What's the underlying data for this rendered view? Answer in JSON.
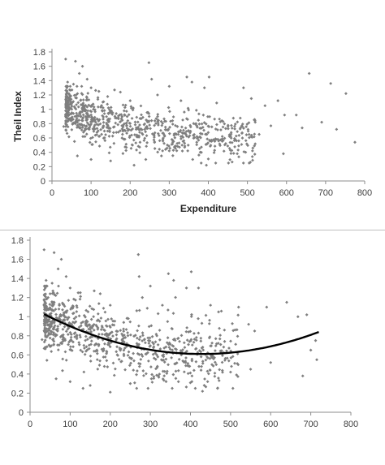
{
  "chart_data": [
    {
      "type": "scatter",
      "title": "",
      "xlabel": "Expenditure",
      "ylabel": "Theil Index",
      "xlim": [
        0,
        800
      ],
      "ylim": [
        0,
        1.8
      ],
      "x_ticks": [
        "0",
        "100",
        "200",
        "300",
        "400",
        "500",
        "600",
        "700",
        "800"
      ],
      "y_ticks": [
        "0",
        "0.2",
        "0.4",
        "0.6",
        "0.8",
        "1",
        "1.2",
        "1.4",
        "1.6",
        "1.8"
      ],
      "grid": false,
      "series": [
        {
          "color": "#7f7f7f",
          "points": [
            [
              35,
              1.7
            ],
            [
              40,
              1.38
            ],
            [
              38,
              1.3
            ],
            [
              60,
              1.67
            ],
            [
              78,
              1.6
            ],
            [
              70,
              1.5
            ],
            [
              55,
              1.35
            ],
            [
              45,
              1.2
            ],
            [
              90,
              1.42
            ],
            [
              100,
              1.3
            ],
            [
              120,
              1.25
            ],
            [
              160,
              1.27
            ],
            [
              175,
              1.24
            ],
            [
              200,
              1.12
            ],
            [
              248,
              1.65
            ],
            [
              255,
              1.42
            ],
            [
              270,
              1.2
            ],
            [
              300,
              1.32
            ],
            [
              330,
              1.12
            ],
            [
              345,
              1.45
            ],
            [
              358,
              1.38
            ],
            [
              390,
              1.3
            ],
            [
              402,
              1.45
            ],
            [
              490,
              1.3
            ],
            [
              510,
              1.15
            ],
            [
              545,
              1.05
            ],
            [
              578,
              1.12
            ],
            [
              625,
              0.92
            ],
            [
              658,
              1.5
            ],
            [
              713,
              1.36
            ],
            [
              752,
              1.22
            ],
            [
              560,
              0.77
            ],
            [
              595,
              0.92
            ],
            [
              592,
              0.38
            ],
            [
              640,
              0.74
            ],
            [
              690,
              0.82
            ],
            [
              728,
              0.72
            ],
            [
              775,
              0.54
            ],
            [
              530,
              0.65
            ],
            [
              470,
              0.57
            ],
            [
              420,
              0.58
            ],
            [
              395,
              0.22
            ],
            [
              360,
              0.3
            ],
            [
              350,
              0.7
            ],
            [
              300,
              0.42
            ],
            [
              280,
              0.35
            ],
            [
              240,
              0.3
            ],
            [
              210,
              0.22
            ],
            [
              150,
              0.28
            ],
            [
              100,
              0.3
            ],
            [
              65,
              0.35
            ],
            [
              30,
              0.76
            ]
          ]
        },
        {
          "color": "#7f7f7f",
          "generated": {
            "count": 800,
            "seed": 11,
            "x_range": [
              35,
              520
            ],
            "fit": [
              1.104,
              -0.002311,
              2.7e-06
            ],
            "noise": 0.17,
            "y_range": [
              0.25,
              1.32
            ]
          }
        }
      ]
    },
    {
      "type": "scatter",
      "title": "",
      "xlabel": "",
      "ylabel": "",
      "xlim": [
        0,
        800
      ],
      "ylim": [
        0,
        1.8
      ],
      "x_ticks": [
        "0",
        "100",
        "200",
        "300",
        "400",
        "500",
        "600",
        "700",
        "800"
      ],
      "y_ticks": [
        "0",
        "0.2",
        "0.4",
        "0.6",
        "0.8",
        "1",
        "1.2",
        "1.4",
        "1.6",
        "1.8"
      ],
      "grid": false,
      "series": [
        {
          "color": "#7f7f7f",
          "points": [
            [
              35,
              1.7
            ],
            [
              40,
              1.38
            ],
            [
              38,
              1.3
            ],
            [
              60,
              1.67
            ],
            [
              78,
              1.6
            ],
            [
              70,
              1.5
            ],
            [
              55,
              1.35
            ],
            [
              45,
              1.2
            ],
            [
              90,
              1.42
            ],
            [
              100,
              1.3
            ],
            [
              120,
              1.25
            ],
            [
              160,
              1.27
            ],
            [
              175,
              1.24
            ],
            [
              200,
              1.12
            ],
            [
              270,
              1.65
            ],
            [
              272,
              1.42
            ],
            [
              280,
              1.2
            ],
            [
              300,
              1.32
            ],
            [
              330,
              1.12
            ],
            [
              345,
              1.45
            ],
            [
              358,
              1.38
            ],
            [
              390,
              1.3
            ],
            [
              402,
              1.47
            ],
            [
              420,
              1.3
            ],
            [
              450,
              1.12
            ],
            [
              470,
              1.05
            ],
            [
              520,
              1.1
            ],
            [
              545,
              0.92
            ],
            [
              560,
              0.85
            ],
            [
              590,
              1.1
            ],
            [
              640,
              1.15
            ],
            [
              668,
              1.0
            ],
            [
              690,
              1.02
            ],
            [
              700,
              0.65
            ],
            [
              712,
              0.75
            ],
            [
              715,
              0.55
            ],
            [
              680,
              0.38
            ],
            [
              600,
              0.52
            ],
            [
              550,
              0.45
            ],
            [
              500,
              0.42
            ],
            [
              430,
              0.22
            ],
            [
              370,
              0.32
            ],
            [
              320,
              0.38
            ],
            [
              250,
              0.3
            ],
            [
              200,
              0.21
            ],
            [
              150,
              0.28
            ],
            [
              100,
              0.32
            ],
            [
              65,
              0.35
            ],
            [
              30,
              0.76
            ]
          ]
        },
        {
          "color": "#7f7f7f",
          "generated": {
            "count": 800,
            "seed": 23,
            "x_range": [
              35,
              520
            ],
            "fit": [
              1.104,
              -0.002311,
              2.7e-06
            ],
            "noise": 0.17,
            "y_range": [
              0.25,
              1.32
            ]
          }
        }
      ],
      "trendline": {
        "type": "polynomial",
        "order": 2,
        "coefficients": [
          1.104,
          -0.002311,
          2.7e-06
        ],
        "x_range": [
          35,
          720
        ],
        "color": "#000000"
      }
    }
  ]
}
